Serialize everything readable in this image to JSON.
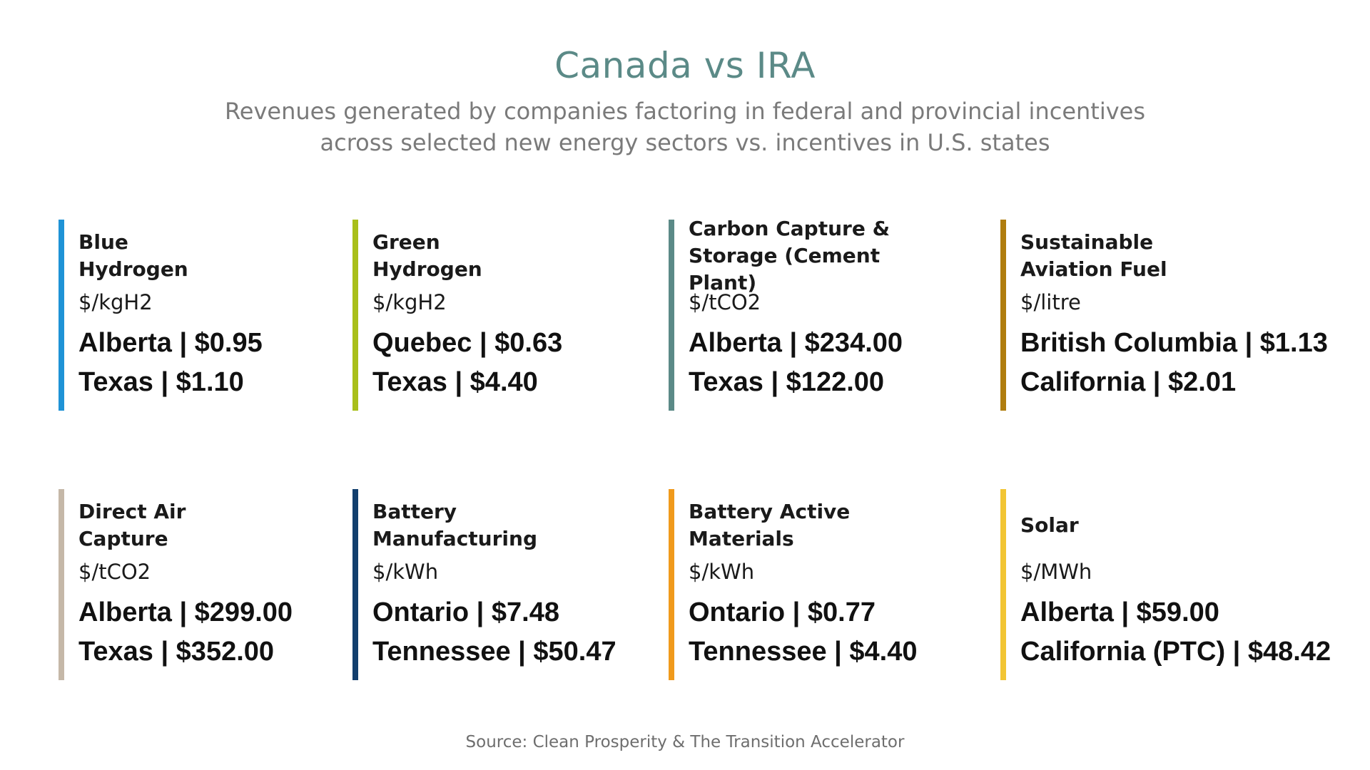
{
  "header": {
    "title": "Canada vs IRA",
    "subtitle": "Revenues generated by companies factoring in federal and provincial incentives across selected new energy sectors vs. incentives in U.S. states"
  },
  "sectors": [
    {
      "name": "Blue\nHydrogen",
      "unit": "$/kgH2",
      "canada": "Alberta | $0.95",
      "us": "Texas | $1.10",
      "color": "#1f93d6"
    },
    {
      "name": "Green\nHydrogen",
      "unit": "$/kgH2",
      "canada": "Quebec | $0.63",
      "us": "Texas | $4.40",
      "color": "#a9bf1a"
    },
    {
      "name": "Carbon Capture &\nStorage (Cement Plant)",
      "unit": "$/tCO2",
      "canada": "Alberta | $234.00",
      "us": "Texas | $122.00",
      "color": "#5b8a87"
    },
    {
      "name": "Sustainable\nAviation Fuel",
      "unit": "$/litre",
      "canada": "British Columbia | $1.13",
      "us": "California | $2.01",
      "color": "#b07d0e"
    },
    {
      "name": "Direct Air\nCapture",
      "unit": "$/tCO2",
      "canada": "Alberta | $299.00",
      "us": "Texas | $352.00",
      "color": "#c5b8a8"
    },
    {
      "name": "Battery\nManufacturing",
      "unit": "$/kWh",
      "canada": "Ontario | $7.48",
      "us": "Tennessee | $50.47",
      "color": "#123f6e"
    },
    {
      "name": "Battery Active\nMaterials",
      "unit": "$/kWh",
      "canada": "Ontario | $0.77",
      "us": "Tennessee | $4.40",
      "color": "#f09a1c"
    },
    {
      "name": "Solar",
      "unit": "$/MWh",
      "canada": "Alberta | $59.00",
      "us": "California (PTC) | $48.42",
      "color": "#f2c534"
    }
  ],
  "footer": {
    "source": "Source: Clean Prosperity & The Transition Accelerator"
  }
}
